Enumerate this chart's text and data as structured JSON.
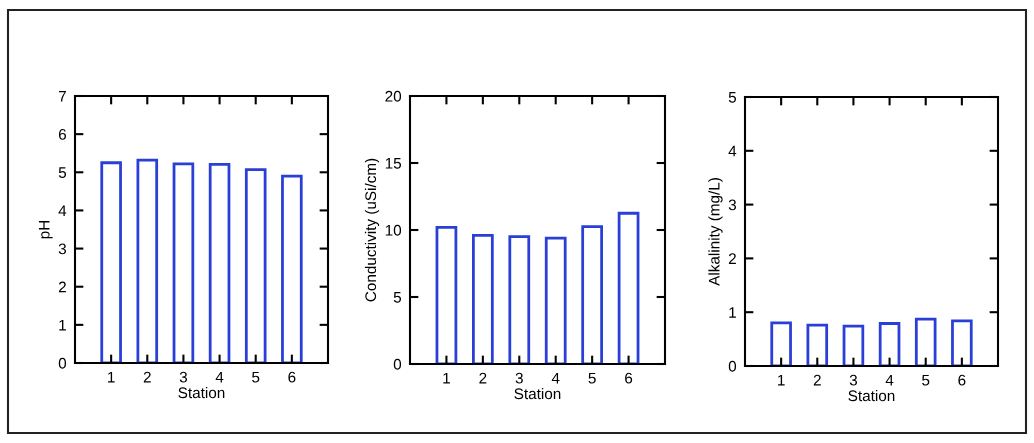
{
  "chart_data": [
    {
      "type": "bar",
      "x": [
        1,
        2,
        3,
        4,
        5,
        6
      ],
      "values": [
        5.25,
        5.32,
        5.22,
        5.21,
        5.07,
        4.9
      ],
      "color": "#2a3fd8",
      "xlabel": "Station",
      "ylabel": "pH",
      "xlim": [
        0,
        7
      ],
      "xticks": [
        1,
        2,
        3,
        4,
        5,
        6
      ],
      "ylim": [
        0,
        7
      ],
      "yticks": [
        0,
        1,
        2,
        3,
        4,
        5,
        6,
        7
      ]
    },
    {
      "type": "bar",
      "x": [
        1,
        2,
        3,
        4,
        5,
        6
      ],
      "values": [
        10.2,
        9.6,
        9.5,
        9.4,
        10.25,
        11.25
      ],
      "color": "#2a3fd8",
      "xlabel": "Station",
      "ylabel": "Conductivity (uSi/cm)",
      "xlim": [
        0,
        7
      ],
      "xticks": [
        1,
        2,
        3,
        4,
        5,
        6
      ],
      "ylim": [
        0,
        20
      ],
      "yticks": [
        0,
        5,
        10,
        15,
        20
      ]
    },
    {
      "type": "bar",
      "x": [
        1,
        2,
        3,
        4,
        5,
        6
      ],
      "values": [
        0.8,
        0.76,
        0.74,
        0.79,
        0.87,
        0.84
      ],
      "color": "#2a3fd8",
      "xlabel": "Station",
      "ylabel": "Alkalinity (mg/L)",
      "xlim": [
        0,
        7
      ],
      "xticks": [
        1,
        2,
        3,
        4,
        5,
        6
      ],
      "ylim": [
        0,
        5
      ],
      "yticks": [
        0,
        1,
        2,
        3,
        4,
        5
      ]
    }
  ]
}
